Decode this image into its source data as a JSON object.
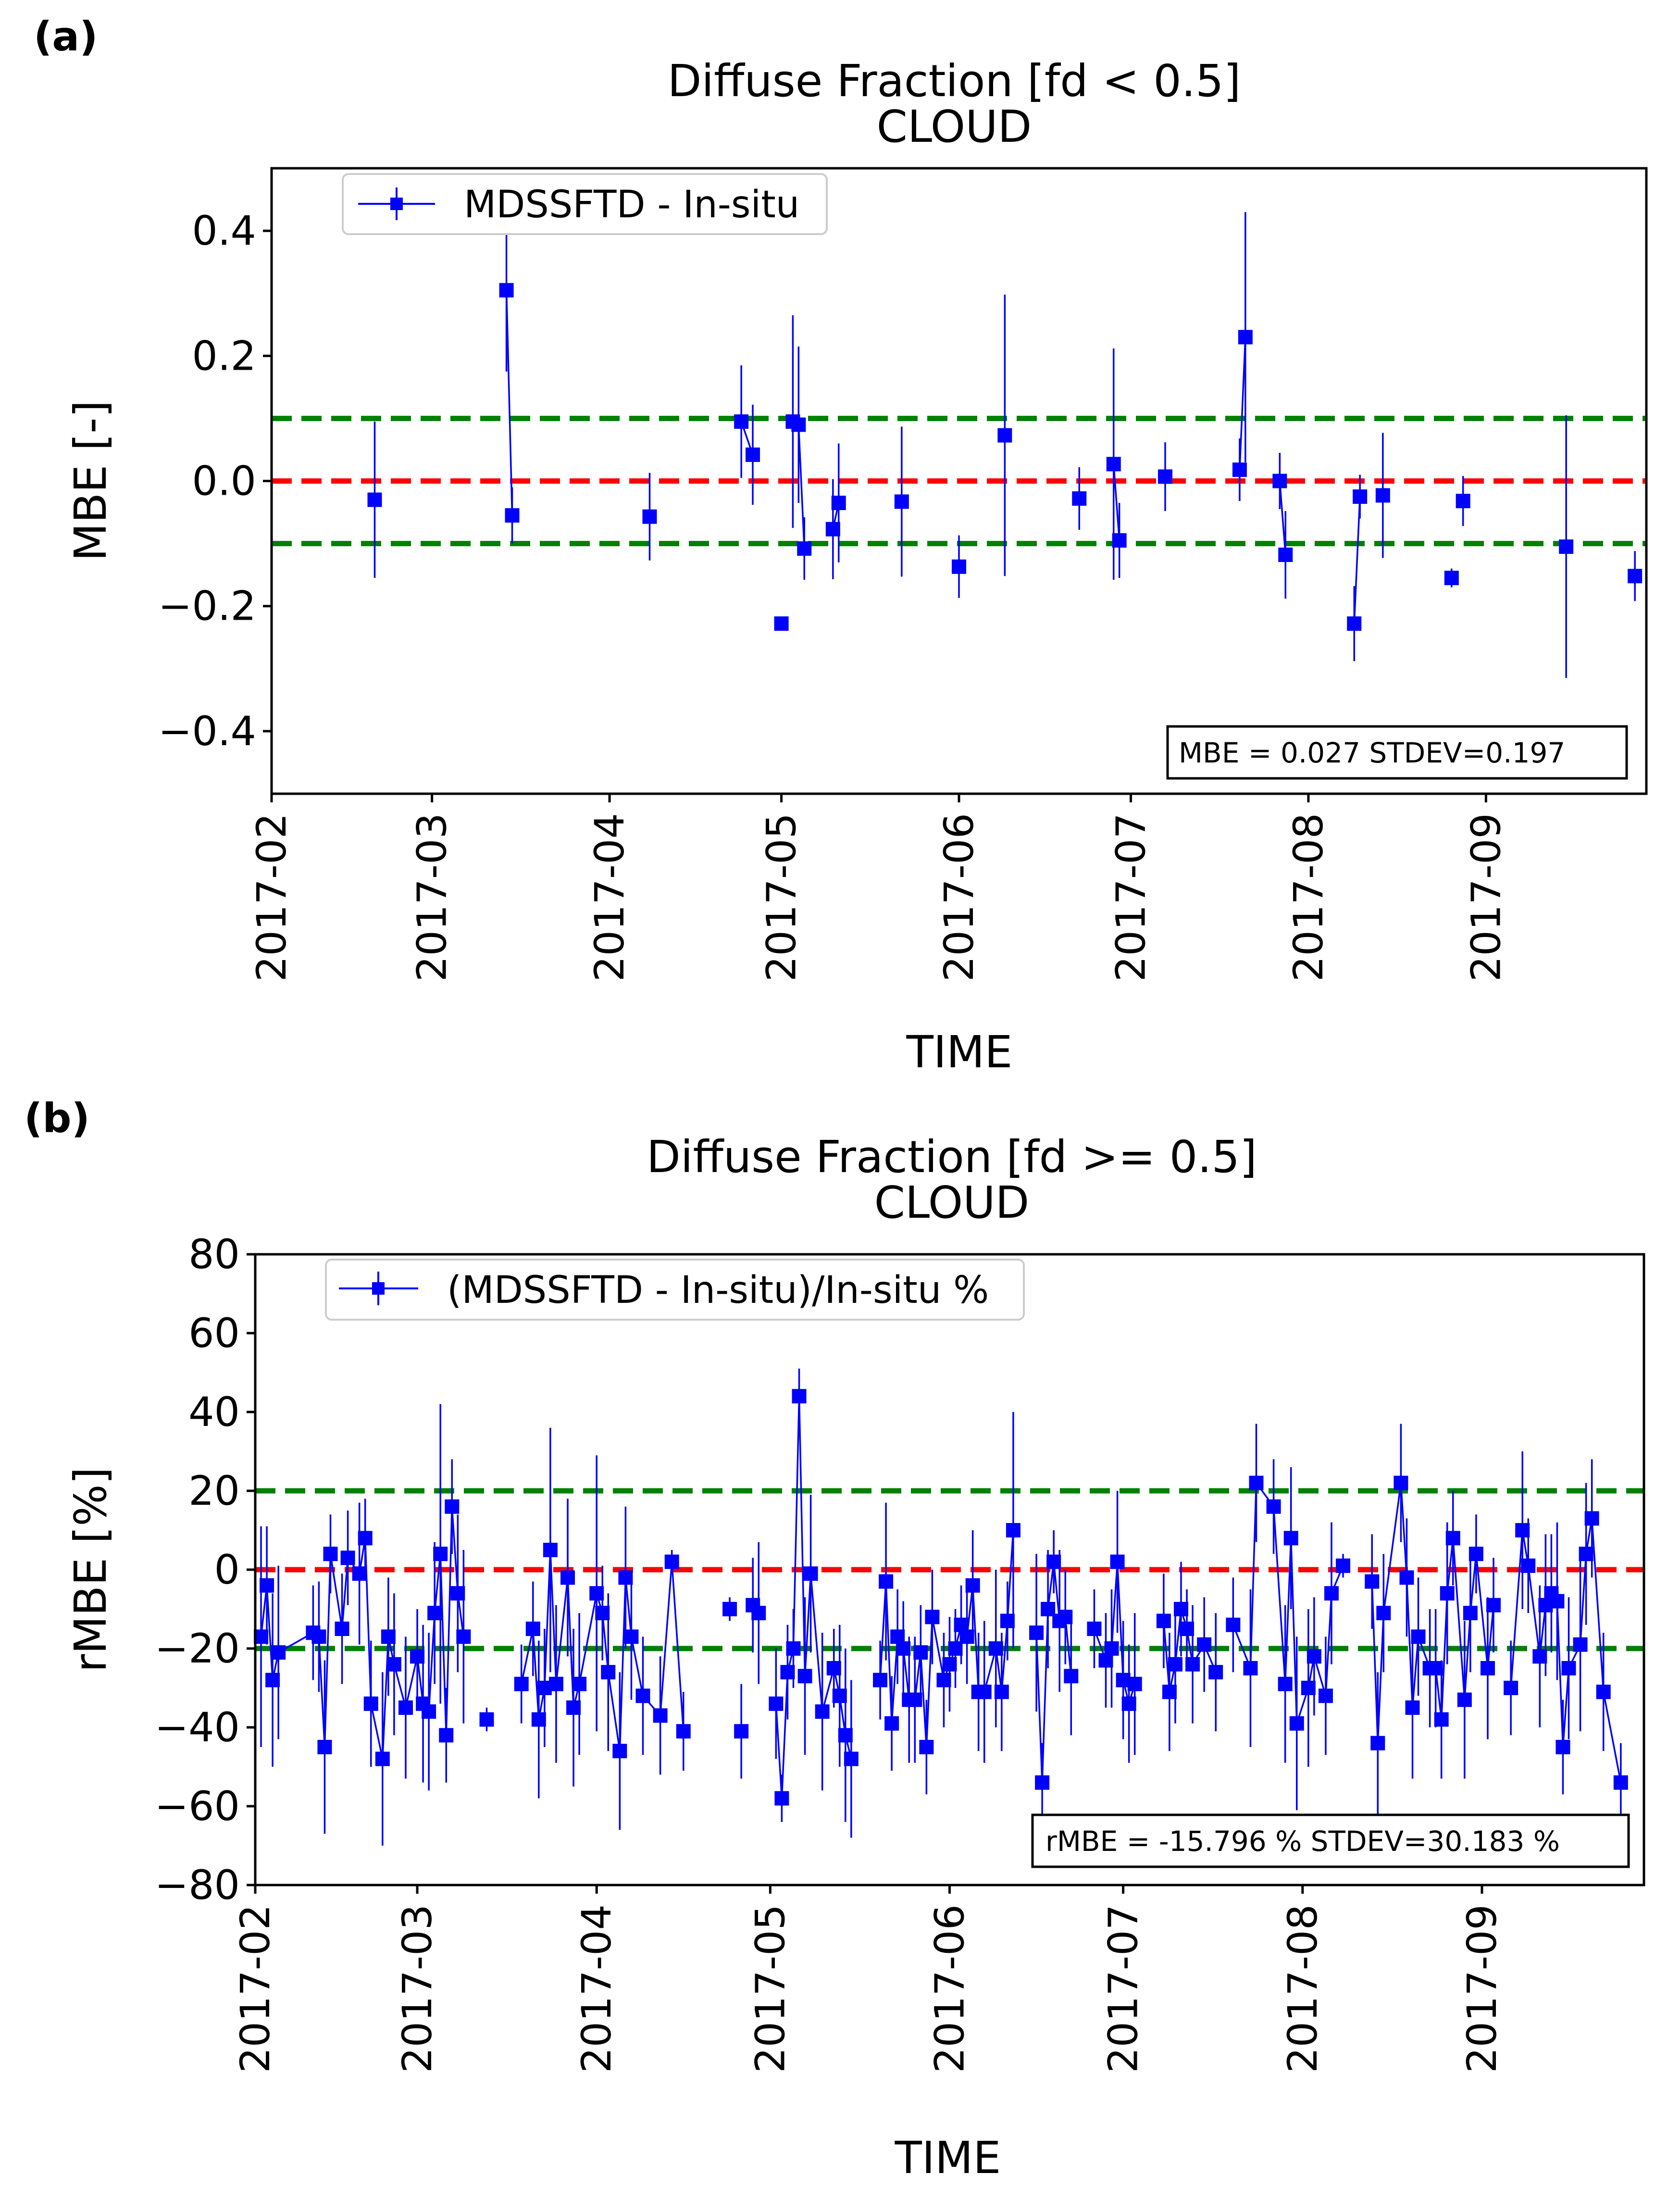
{
  "colors": {
    "series": "#0000ff",
    "zero_line": "#ff0000",
    "band_line": "#008000",
    "axes": "#000000"
  },
  "chart_data": [
    {
      "panel_label": "(a)",
      "type": "line",
      "title": "Diffuse Fraction [fd < 0.5]",
      "subtitle": "CLOUD",
      "xlabel": "TIME",
      "ylabel": "MBE [-]",
      "xlim": [
        0,
        240
      ],
      "ylim": [
        -0.5,
        0.5
      ],
      "x_ticks": [
        {
          "x": 0,
          "label": "2017-02"
        },
        {
          "x": 28,
          "label": "2017-03"
        },
        {
          "x": 59,
          "label": "2017-04"
        },
        {
          "x": 89,
          "label": "2017-05"
        },
        {
          "x": 120,
          "label": "2017-06"
        },
        {
          "x": 150,
          "label": "2017-07"
        },
        {
          "x": 181,
          "label": "2017-08"
        },
        {
          "x": 212,
          "label": "2017-09"
        }
      ],
      "y_ticks": [
        {
          "y": 0.4,
          "label": "0.4"
        },
        {
          "y": 0.2,
          "label": "0.2"
        },
        {
          "y": 0.0,
          "label": "0.0"
        },
        {
          "y": -0.2,
          "label": "−0.2"
        },
        {
          "y": -0.4,
          "label": "−0.4"
        }
      ],
      "zero_line": 0,
      "band_lines": [
        0.1,
        -0.1
      ],
      "legend": "MDSSFTD - In-situ",
      "stats": "MBE = 0.027  STDEV=0.197",
      "segments": [
        [
          {
            "x": 18,
            "y": -0.03,
            "e": 0.125
          }
        ],
        [
          {
            "x": 41,
            "y": 0.305,
            "e": 0.13
          },
          {
            "x": 42,
            "y": -0.055,
            "e": 0.045
          }
        ],
        [
          {
            "x": 66,
            "y": -0.057,
            "e": 0.07
          }
        ],
        [
          {
            "x": 82,
            "y": 0.095,
            "e": 0.09
          },
          {
            "x": 84,
            "y": 0.042,
            "e": 0.08
          }
        ],
        [
          {
            "x": 89,
            "y": -0.228,
            "e": 0.01
          }
        ],
        [
          {
            "x": 91,
            "y": 0.095,
            "e": 0.17
          },
          {
            "x": 92,
            "y": 0.09,
            "e": 0.125
          },
          {
            "x": 93,
            "y": -0.108,
            "e": 0.05
          }
        ],
        [
          {
            "x": 98,
            "y": -0.077,
            "e": 0.08
          },
          {
            "x": 99,
            "y": -0.035,
            "e": 0.095
          }
        ],
        [
          {
            "x": 110,
            "y": -0.033,
            "e": 0.12
          }
        ],
        [
          {
            "x": 120,
            "y": -0.137,
            "e": 0.05
          }
        ],
        [
          {
            "x": 128,
            "y": 0.073,
            "e": 0.225
          }
        ],
        [
          {
            "x": 141,
            "y": -0.028,
            "e": 0.05
          }
        ],
        [
          {
            "x": 147,
            "y": 0.027,
            "e": 0.185
          },
          {
            "x": 148,
            "y": -0.095,
            "e": 0.06
          }
        ],
        [
          {
            "x": 156,
            "y": 0.007,
            "e": 0.055
          }
        ],
        [
          {
            "x": 169,
            "y": 0.018,
            "e": 0.05
          },
          {
            "x": 170,
            "y": 0.23,
            "e": 0.2
          }
        ],
        [
          {
            "x": 176,
            "y": 0.0,
            "e": 0.045
          },
          {
            "x": 177,
            "y": -0.118,
            "e": 0.07
          }
        ],
        [
          {
            "x": 189,
            "y": -0.228,
            "e": 0.06
          },
          {
            "x": 190,
            "y": -0.025,
            "e": 0.035
          }
        ],
        [
          {
            "x": 194,
            "y": -0.023,
            "e": 0.1
          }
        ],
        [
          {
            "x": 206,
            "y": -0.155,
            "e": 0.015
          }
        ],
        [
          {
            "x": 208,
            "y": -0.032,
            "e": 0.04
          }
        ],
        [
          {
            "x": 226,
            "y": -0.105,
            "e": 0.21
          }
        ],
        [
          {
            "x": 238,
            "y": -0.152,
            "e": 0.04
          }
        ]
      ]
    },
    {
      "panel_label": "(b)",
      "type": "line",
      "title": "Diffuse Fraction [fd >= 0.5]",
      "subtitle": "CLOUD",
      "xlabel": "TIME",
      "ylabel": "rMBE [%]",
      "xlim": [
        0,
        240
      ],
      "ylim": [
        -80,
        80
      ],
      "x_ticks": [
        {
          "x": 0,
          "label": "2017-02"
        },
        {
          "x": 28,
          "label": "2017-03"
        },
        {
          "x": 59,
          "label": "2017-04"
        },
        {
          "x": 89,
          "label": "2017-05"
        },
        {
          "x": 120,
          "label": "2017-06"
        },
        {
          "x": 150,
          "label": "2017-07"
        },
        {
          "x": 181,
          "label": "2017-08"
        },
        {
          "x": 212,
          "label": "2017-09"
        }
      ],
      "y_ticks": [
        {
          "y": 80,
          "label": "80"
        },
        {
          "y": 60,
          "label": "60"
        },
        {
          "y": 40,
          "label": "40"
        },
        {
          "y": 20,
          "label": "20"
        },
        {
          "y": 0,
          "label": "0"
        },
        {
          "y": -20,
          "label": "−20"
        },
        {
          "y": -40,
          "label": "−40"
        },
        {
          "y": -60,
          "label": "−60"
        },
        {
          "y": -80,
          "label": "−80"
        }
      ],
      "zero_line": 0,
      "band_lines": [
        20,
        -20
      ],
      "legend": "(MDSSFTD - In-situ)/In-situ %",
      "stats": "rMBE = -15.796 % STDEV=30.183 %",
      "segments": [
        [
          {
            "x": 1,
            "y": -17,
            "e": 28
          },
          {
            "x": 2,
            "y": -4,
            "e": 15
          },
          {
            "x": 3,
            "y": -28,
            "e": 22
          },
          {
            "x": 4,
            "y": -21,
            "e": 22
          },
          {
            "x": 10,
            "y": -16,
            "e": 12
          },
          {
            "x": 11,
            "y": -17,
            "e": 14
          },
          {
            "x": 12,
            "y": -45,
            "e": 22
          },
          {
            "x": 13,
            "y": 4,
            "e": 10
          },
          {
            "x": 15,
            "y": -15,
            "e": 14
          },
          {
            "x": 16,
            "y": 3,
            "e": 12
          },
          {
            "x": 18,
            "y": -1,
            "e": 18
          },
          {
            "x": 19,
            "y": 8,
            "e": 10
          },
          {
            "x": 20,
            "y": -34,
            "e": 16
          },
          {
            "x": 22,
            "y": -48,
            "e": 22
          },
          {
            "x": 23,
            "y": -17,
            "e": 15
          },
          {
            "x": 24,
            "y": -24,
            "e": 18
          },
          {
            "x": 26,
            "y": -35,
            "e": 18
          },
          {
            "x": 28,
            "y": -22,
            "e": 12
          },
          {
            "x": 29,
            "y": -34,
            "e": 20
          },
          {
            "x": 30,
            "y": -36,
            "e": 20
          },
          {
            "x": 31,
            "y": -11,
            "e": 18
          },
          {
            "x": 32,
            "y": 4,
            "e": 38
          },
          {
            "x": 33,
            "y": -42,
            "e": 12
          },
          {
            "x": 34,
            "y": 16,
            "e": 12
          },
          {
            "x": 35,
            "y": -6,
            "e": 20
          },
          {
            "x": 36,
            "y": -17,
            "e": 22
          }
        ],
        [
          {
            "x": 40,
            "y": -38,
            "e": 3
          }
        ],
        [
          {
            "x": 46,
            "y": -29,
            "e": 10
          },
          {
            "x": 48,
            "y": -15,
            "e": 12
          },
          {
            "x": 49,
            "y": -38,
            "e": 20
          },
          {
            "x": 50,
            "y": -30,
            "e": 15
          },
          {
            "x": 51,
            "y": 5,
            "e": 31
          },
          {
            "x": 52,
            "y": -29,
            "e": 20
          },
          {
            "x": 54,
            "y": -2,
            "e": 20
          },
          {
            "x": 55,
            "y": -35,
            "e": 20
          },
          {
            "x": 56,
            "y": -29,
            "e": 18
          },
          {
            "x": 59,
            "y": -6,
            "e": 35
          },
          {
            "x": 60,
            "y": -11,
            "e": 12
          },
          {
            "x": 61,
            "y": -26,
            "e": 20
          },
          {
            "x": 63,
            "y": -46,
            "e": 20
          },
          {
            "x": 64,
            "y": -2,
            "e": 18
          },
          {
            "x": 65,
            "y": -17,
            "e": 16
          },
          {
            "x": 67,
            "y": -32,
            "e": 15
          },
          {
            "x": 70,
            "y": -37,
            "e": 15
          },
          {
            "x": 72,
            "y": 2,
            "e": 3
          },
          {
            "x": 74,
            "y": -41,
            "e": 10
          }
        ],
        [
          {
            "x": 82,
            "y": -10,
            "e": 3
          }
        ],
        [
          {
            "x": 84,
            "y": -41,
            "e": 12
          }
        ],
        [
          {
            "x": 86,
            "y": -9,
            "e": 12
          },
          {
            "x": 87,
            "y": -11,
            "e": 18
          }
        ],
        [
          {
            "x": 90,
            "y": -34,
            "e": 14
          },
          {
            "x": 91,
            "y": -58,
            "e": 6
          },
          {
            "x": 92,
            "y": -26,
            "e": 12
          },
          {
            "x": 93,
            "y": -20,
            "e": 10
          },
          {
            "x": 94,
            "y": 44,
            "e": 7
          },
          {
            "x": 95,
            "y": -27,
            "e": 20
          },
          {
            "x": 96,
            "y": -1,
            "e": 20
          },
          {
            "x": 98,
            "y": -36,
            "e": 20
          },
          {
            "x": 100,
            "y": -25,
            "e": 10
          },
          {
            "x": 101,
            "y": -32,
            "e": 18
          },
          {
            "x": 102,
            "y": -42,
            "e": 22
          },
          {
            "x": 103,
            "y": -48,
            "e": 20
          }
        ],
        [
          {
            "x": 108,
            "y": -28,
            "e": 10
          },
          {
            "x": 109,
            "y": -3,
            "e": 20
          },
          {
            "x": 110,
            "y": -39,
            "e": 12
          },
          {
            "x": 111,
            "y": -17,
            "e": 12
          },
          {
            "x": 112,
            "y": -20,
            "e": 12
          },
          {
            "x": 113,
            "y": -33,
            "e": 16
          },
          {
            "x": 114,
            "y": -33,
            "e": 16
          },
          {
            "x": 115,
            "y": -21,
            "e": 12
          },
          {
            "x": 116,
            "y": -45,
            "e": 12
          },
          {
            "x": 117,
            "y": -12,
            "e": 12
          },
          {
            "x": 119,
            "y": -28,
            "e": 12
          },
          {
            "x": 120,
            "y": -24,
            "e": 12
          },
          {
            "x": 121,
            "y": -20,
            "e": 10
          },
          {
            "x": 122,
            "y": -14,
            "e": 10
          },
          {
            "x": 123,
            "y": -17,
            "e": 12
          },
          {
            "x": 124,
            "y": -4,
            "e": 14
          },
          {
            "x": 125,
            "y": -31,
            "e": 15
          },
          {
            "x": 126,
            "y": -31,
            "e": 18
          },
          {
            "x": 128,
            "y": -20,
            "e": 20
          },
          {
            "x": 129,
            "y": -31,
            "e": 15
          },
          {
            "x": 130,
            "y": -13,
            "e": 10
          },
          {
            "x": 131,
            "y": 10,
            "e": 30
          }
        ],
        [
          {
            "x": 135,
            "y": -16,
            "e": 20
          },
          {
            "x": 136,
            "y": -54,
            "e": 10
          },
          {
            "x": 137,
            "y": -10,
            "e": 15
          },
          {
            "x": 138,
            "y": 2,
            "e": 8
          },
          {
            "x": 139,
            "y": -13,
            "e": 18
          },
          {
            "x": 140,
            "y": -12,
            "e": 12
          },
          {
            "x": 141,
            "y": -27,
            "e": 15
          }
        ],
        [
          {
            "x": 145,
            "y": -15,
            "e": 10
          },
          {
            "x": 147,
            "y": -23,
            "e": 12
          },
          {
            "x": 148,
            "y": -20,
            "e": 15
          },
          {
            "x": 149,
            "y": 2,
            "e": 18
          },
          {
            "x": 150,
            "y": -28,
            "e": 15
          },
          {
            "x": 151,
            "y": -34,
            "e": 15
          },
          {
            "x": 152,
            "y": -29,
            "e": 18
          }
        ],
        [
          {
            "x": 157,
            "y": -13,
            "e": 12
          },
          {
            "x": 158,
            "y": -31,
            "e": 15
          },
          {
            "x": 159,
            "y": -24,
            "e": 15
          },
          {
            "x": 160,
            "y": -10,
            "e": 12
          },
          {
            "x": 161,
            "y": -15,
            "e": 10
          },
          {
            "x": 162,
            "y": -24,
            "e": 15
          },
          {
            "x": 164,
            "y": -19,
            "e": 12
          },
          {
            "x": 166,
            "y": -26,
            "e": 15
          }
        ],
        [
          {
            "x": 169,
            "y": -14,
            "e": 12
          },
          {
            "x": 172,
            "y": -25,
            "e": 20
          },
          {
            "x": 173,
            "y": 22,
            "e": 15
          },
          {
            "x": 176,
            "y": 16,
            "e": 12
          },
          {
            "x": 178,
            "y": -29,
            "e": 20
          },
          {
            "x": 179,
            "y": 8,
            "e": 18
          },
          {
            "x": 180,
            "y": -39,
            "e": 22
          },
          {
            "x": 182,
            "y": -30,
            "e": 20
          },
          {
            "x": 183,
            "y": -22,
            "e": 15
          },
          {
            "x": 185,
            "y": -32,
            "e": 15
          },
          {
            "x": 186,
            "y": -6,
            "e": 18
          },
          {
            "x": 188,
            "y": 1,
            "e": 3
          }
        ],
        [
          {
            "x": 193,
            "y": -3,
            "e": 12
          },
          {
            "x": 194,
            "y": -44,
            "e": 18
          },
          {
            "x": 195,
            "y": -11,
            "e": 15
          },
          {
            "x": 198,
            "y": 22,
            "e": 15
          },
          {
            "x": 199,
            "y": -2,
            "e": 15
          },
          {
            "x": 200,
            "y": -35,
            "e": 18
          },
          {
            "x": 201,
            "y": -17,
            "e": 15
          },
          {
            "x": 203,
            "y": -25,
            "e": 15
          },
          {
            "x": 204,
            "y": -25,
            "e": 15
          },
          {
            "x": 205,
            "y": -38,
            "e": 15
          },
          {
            "x": 206,
            "y": -6,
            "e": 18
          },
          {
            "x": 207,
            "y": 8,
            "e": 12
          },
          {
            "x": 209,
            "y": -33,
            "e": 20
          },
          {
            "x": 210,
            "y": -11,
            "e": 15
          },
          {
            "x": 211,
            "y": 4,
            "e": 10
          },
          {
            "x": 213,
            "y": -25,
            "e": 18
          },
          {
            "x": 214,
            "y": -9,
            "e": 12
          }
        ],
        [
          {
            "x": 217,
            "y": -30,
            "e": 12
          },
          {
            "x": 219,
            "y": 10,
            "e": 20
          },
          {
            "x": 220,
            "y": 1,
            "e": 12
          },
          {
            "x": 222,
            "y": -22,
            "e": 18
          },
          {
            "x": 223,
            "y": -9,
            "e": 18
          },
          {
            "x": 224,
            "y": -6,
            "e": 15
          },
          {
            "x": 225,
            "y": -8,
            "e": 20
          },
          {
            "x": 226,
            "y": -45,
            "e": 12
          },
          {
            "x": 227,
            "y": -25,
            "e": 18
          },
          {
            "x": 229,
            "y": -19,
            "e": 22
          },
          {
            "x": 230,
            "y": 4,
            "e": 18
          },
          {
            "x": 231,
            "y": 13,
            "e": 15
          },
          {
            "x": 233,
            "y": -31,
            "e": 15
          },
          {
            "x": 236,
            "y": -54,
            "e": 10
          }
        ]
      ]
    }
  ]
}
